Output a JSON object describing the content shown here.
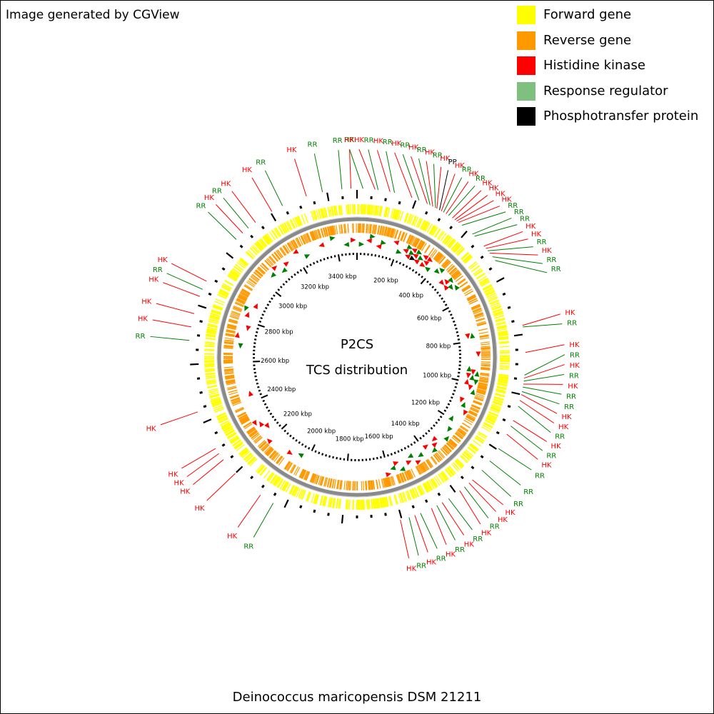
{
  "credit": "Image generated by CGView",
  "center_title": "P2CS",
  "center_subtitle": "TCS distribution",
  "organism": "Deinococcus maricopensis DSM 21211",
  "genome_length_kbp": 3500,
  "legend": [
    {
      "label": "Forward gene",
      "color": "#ffff00"
    },
    {
      "label": "Reverse gene",
      "color": "#ff9900"
    },
    {
      "label": "Histidine kinase",
      "color": "#ff0000"
    },
    {
      "label": "Response regulator",
      "color": "#7fbf7f"
    },
    {
      "label": "Phosphotransfer protein",
      "color": "#000000"
    }
  ],
  "colors": {
    "HK": "#ff0000",
    "RR": "#008000",
    "PP": "#000000",
    "backbone": "#808080"
  },
  "tick_labels": [
    {
      "kbp": 200,
      "text": "200 kbp"
    },
    {
      "kbp": 400,
      "text": "400 kbp"
    },
    {
      "kbp": 600,
      "text": "600 kbp"
    },
    {
      "kbp": 800,
      "text": "800 kbp"
    },
    {
      "kbp": 1000,
      "text": "1000 kbp"
    },
    {
      "kbp": 1200,
      "text": "1200 kbp"
    },
    {
      "kbp": 1400,
      "text": "1400 kbp"
    },
    {
      "kbp": 1600,
      "text": "1600 kbp"
    },
    {
      "kbp": 1800,
      "text": "1800 kbp"
    },
    {
      "kbp": 2000,
      "text": "2000 kbp"
    },
    {
      "kbp": 2200,
      "text": "2200 kbp"
    },
    {
      "kbp": 2400,
      "text": "2400 kbp"
    },
    {
      "kbp": 2600,
      "text": "2600 kbp"
    },
    {
      "kbp": 2800,
      "text": "2800 kbp"
    },
    {
      "kbp": 3000,
      "text": "3000 kbp"
    },
    {
      "kbp": 3200,
      "text": "3200 kbp"
    },
    {
      "kbp": 3400,
      "text": "3400 kbp"
    }
  ],
  "features": [
    {
      "kbp": 20,
      "type": "RR"
    },
    {
      "kbp": 60,
      "type": "HK"
    },
    {
      "kbp": 70,
      "type": "RR"
    },
    {
      "kbp": 110,
      "type": "HK"
    },
    {
      "kbp": 125,
      "type": "RR"
    },
    {
      "kbp": 185,
      "type": "HK"
    },
    {
      "kbp": 210,
      "type": "RR"
    },
    {
      "kbp": 240,
      "type": "HK"
    },
    {
      "kbp": 250,
      "type": "RR"
    },
    {
      "kbp": 260,
      "type": "HK"
    },
    {
      "kbp": 270,
      "type": "RR"
    },
    {
      "kbp": 275,
      "type": "HK"
    },
    {
      "kbp": 285,
      "type": "PP"
    },
    {
      "kbp": 292,
      "type": "HK"
    },
    {
      "kbp": 300,
      "type": "RR"
    },
    {
      "kbp": 310,
      "type": "HK"
    },
    {
      "kbp": 320,
      "type": "RR"
    },
    {
      "kbp": 335,
      "type": "HK"
    },
    {
      "kbp": 345,
      "type": "HK"
    },
    {
      "kbp": 352,
      "type": "HK"
    },
    {
      "kbp": 360,
      "type": "HK"
    },
    {
      "kbp": 375,
      "type": "RR"
    },
    {
      "kbp": 420,
      "type": "RR"
    },
    {
      "kbp": 430,
      "type": "RR"
    },
    {
      "kbp": 475,
      "type": "HK"
    },
    {
      "kbp": 485,
      "type": "HK"
    },
    {
      "kbp": 495,
      "type": "RR"
    },
    {
      "kbp": 505,
      "type": "HK"
    },
    {
      "kbp": 520,
      "type": "RR"
    },
    {
      "kbp": 535,
      "type": "RR"
    },
    {
      "kbp": 770,
      "type": "HK"
    },
    {
      "kbp": 775,
      "type": "RR"
    },
    {
      "kbp": 860,
      "type": "HK"
    },
    {
      "kbp": 935,
      "type": "RR"
    },
    {
      "kbp": 945,
      "type": "HK"
    },
    {
      "kbp": 955,
      "type": "RR"
    },
    {
      "kbp": 965,
      "type": "HK"
    },
    {
      "kbp": 975,
      "type": "RR"
    },
    {
      "kbp": 990,
      "type": "RR"
    },
    {
      "kbp": 1000,
      "type": "HK"
    },
    {
      "kbp": 1020,
      "type": "HK"
    },
    {
      "kbp": 1040,
      "type": "RR"
    },
    {
      "kbp": 1090,
      "type": "HK"
    },
    {
      "kbp": 1110,
      "type": "RR"
    },
    {
      "kbp": 1140,
      "type": "HK"
    },
    {
      "kbp": 1195,
      "type": "RR"
    },
    {
      "kbp": 1245,
      "type": "RR"
    },
    {
      "kbp": 1285,
      "type": "RR"
    },
    {
      "kbp": 1330,
      "type": "HK"
    },
    {
      "kbp": 1345,
      "type": "HK"
    },
    {
      "kbp": 1365,
      "type": "RR"
    },
    {
      "kbp": 1385,
      "type": "HK"
    },
    {
      "kbp": 1430,
      "type": "RR"
    },
    {
      "kbp": 1455,
      "type": "HK"
    },
    {
      "kbp": 1475,
      "type": "RR"
    },
    {
      "kbp": 1495,
      "type": "HK"
    },
    {
      "kbp": 1535,
      "type": "RR"
    },
    {
      "kbp": 1555,
      "type": "HK"
    },
    {
      "kbp": 1575,
      "type": "RR"
    },
    {
      "kbp": 1605,
      "type": "HK"
    },
    {
      "kbp": 2040,
      "type": "RR"
    },
    {
      "kbp": 2090,
      "type": "HK"
    },
    {
      "kbp": 2200,
      "type": "HK"
    },
    {
      "kbp": 2260,
      "type": "HK"
    },
    {
      "kbp": 2285,
      "type": "HK"
    },
    {
      "kbp": 2305,
      "type": "HK"
    },
    {
      "kbp": 2440,
      "type": "HK"
    },
    {
      "kbp": 2680,
      "type": "RR"
    },
    {
      "kbp": 2725,
      "type": "HK"
    },
    {
      "kbp": 2770,
      "type": "HK"
    },
    {
      "kbp": 2830,
      "type": "HK"
    },
    {
      "kbp": 2855,
      "type": "RR"
    },
    {
      "kbp": 2885,
      "type": "HK"
    },
    {
      "kbp": 3055,
      "type": "RR"
    },
    {
      "kbp": 3085,
      "type": "HK"
    },
    {
      "kbp": 3110,
      "type": "RR"
    },
    {
      "kbp": 3140,
      "type": "HK"
    },
    {
      "kbp": 3205,
      "type": "HK"
    },
    {
      "kbp": 3245,
      "type": "RR"
    },
    {
      "kbp": 3330,
      "type": "HK"
    },
    {
      "kbp": 3385,
      "type": "RR"
    },
    {
      "kbp": 3450,
      "type": "RR"
    },
    {
      "kbp": 3480,
      "type": "HK"
    }
  ]
}
